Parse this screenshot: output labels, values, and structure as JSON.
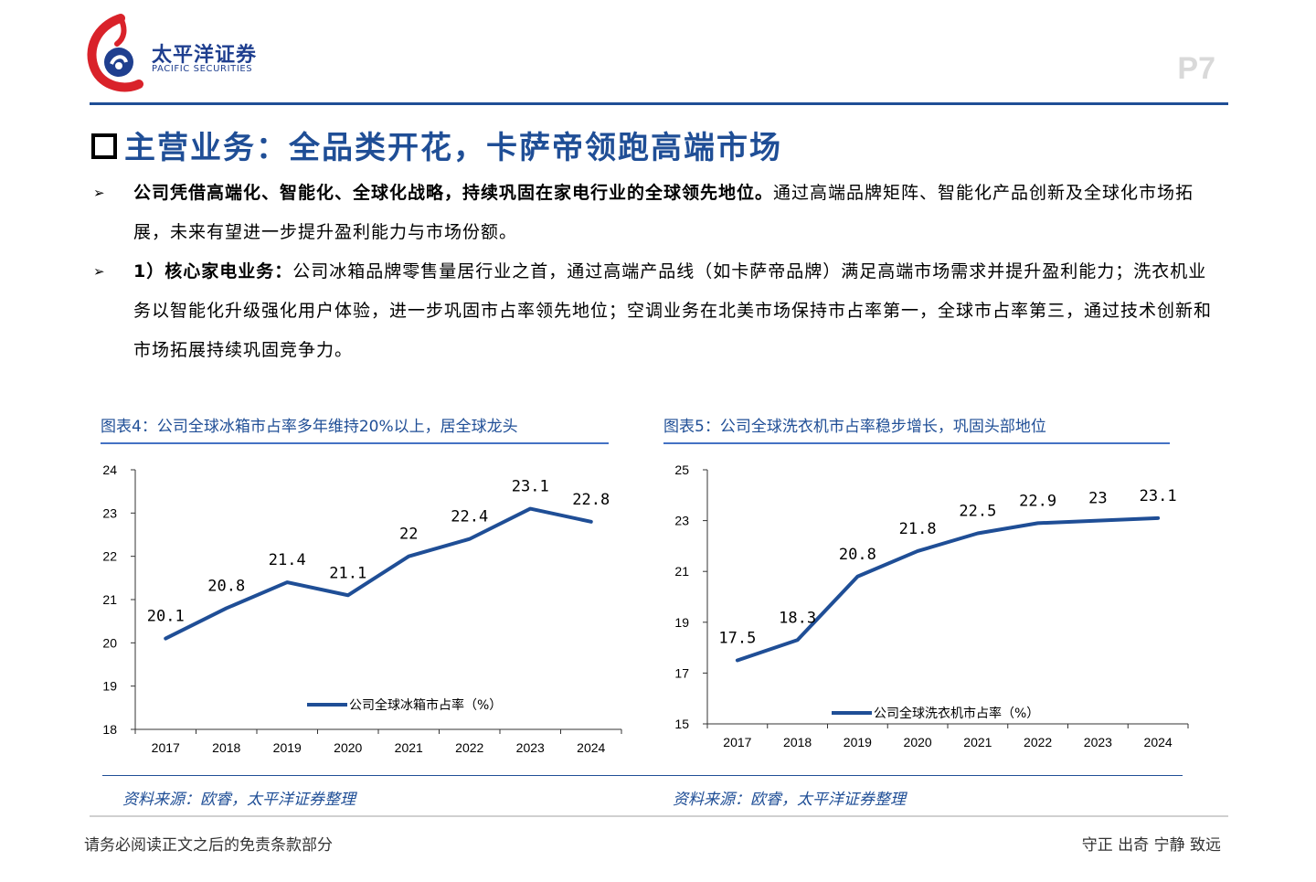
{
  "header": {
    "brand_cn": "太平洋证券",
    "brand_en": "PACIFIC SECURITIES",
    "page_number": "P7"
  },
  "section": {
    "title": "主营业务：全品类开花，卡萨帝领跑高端市场"
  },
  "bullets": [
    {
      "symbol": "➢",
      "bold": "公司凭借高端化、智能化、全球化战略，持续巩固在家电行业的全球领先地位。",
      "text": "通过高端品牌矩阵、智能化产品创新及全球化市场拓展，未来有望进一步提升盈利能力与市场份额。"
    },
    {
      "symbol": "➢",
      "bold": "1）核心家电业务：",
      "text": "公司冰箱品牌零售量居行业之首，通过高端产品线（如卡萨帝品牌）满足高端市场需求并提升盈利能力；洗衣机业务以智能化升级强化用户体验，进一步巩固市占率领先地位；空调业务在北美市场保持市占率第一，全球市占率第三，通过技术创新和市场拓展持续巩固竞争力。"
    }
  ],
  "chart_data": [
    {
      "type": "line",
      "title": "图表4：公司全球冰箱市占率多年维持20%以上，居全球龙头",
      "categories": [
        "2017",
        "2018",
        "2019",
        "2020",
        "2021",
        "2022",
        "2023",
        "2024"
      ],
      "series": [
        {
          "name": "公司全球冰箱市占率（%）",
          "values": [
            20.1,
            20.8,
            21.4,
            21.1,
            22,
            22.4,
            23.1,
            22.8
          ],
          "labels": [
            "20.1",
            "20.8",
            "21.4",
            "21.1",
            "22",
            "22.4",
            "23.1",
            "22.8"
          ]
        }
      ],
      "yticks": [
        "18",
        "19",
        "20",
        "21",
        "22",
        "23",
        "24"
      ],
      "ylim": [
        18,
        24
      ],
      "legend": "bottom-center",
      "color": "#1f4e96",
      "source": "资料来源：欧睿，太平洋证券整理"
    },
    {
      "type": "line",
      "title": "图表5：公司全球洗衣机市占率稳步增长，巩固头部地位",
      "categories": [
        "2017",
        "2018",
        "2019",
        "2020",
        "2021",
        "2022",
        "2023",
        "2024"
      ],
      "series": [
        {
          "name": "公司全球洗衣机市占率（%）",
          "values": [
            17.5,
            18.3,
            20.8,
            21.8,
            22.5,
            22.9,
            23,
            23.1
          ],
          "labels": [
            "17.5",
            "18.3",
            "20.8",
            "21.8",
            "22.5",
            "22.9",
            "23",
            "23.1"
          ]
        }
      ],
      "yticks": [
        "15",
        "17",
        "19",
        "21",
        "23",
        "25"
      ],
      "ylim": [
        15,
        25
      ],
      "legend": "bottom-center",
      "color": "#1f4e96",
      "source": "资料来源：欧睿，太平洋证券整理"
    }
  ],
  "footer": {
    "left": "请务必阅读正文之后的免责条款部分",
    "right": "守正  出奇  宁静  致远"
  }
}
